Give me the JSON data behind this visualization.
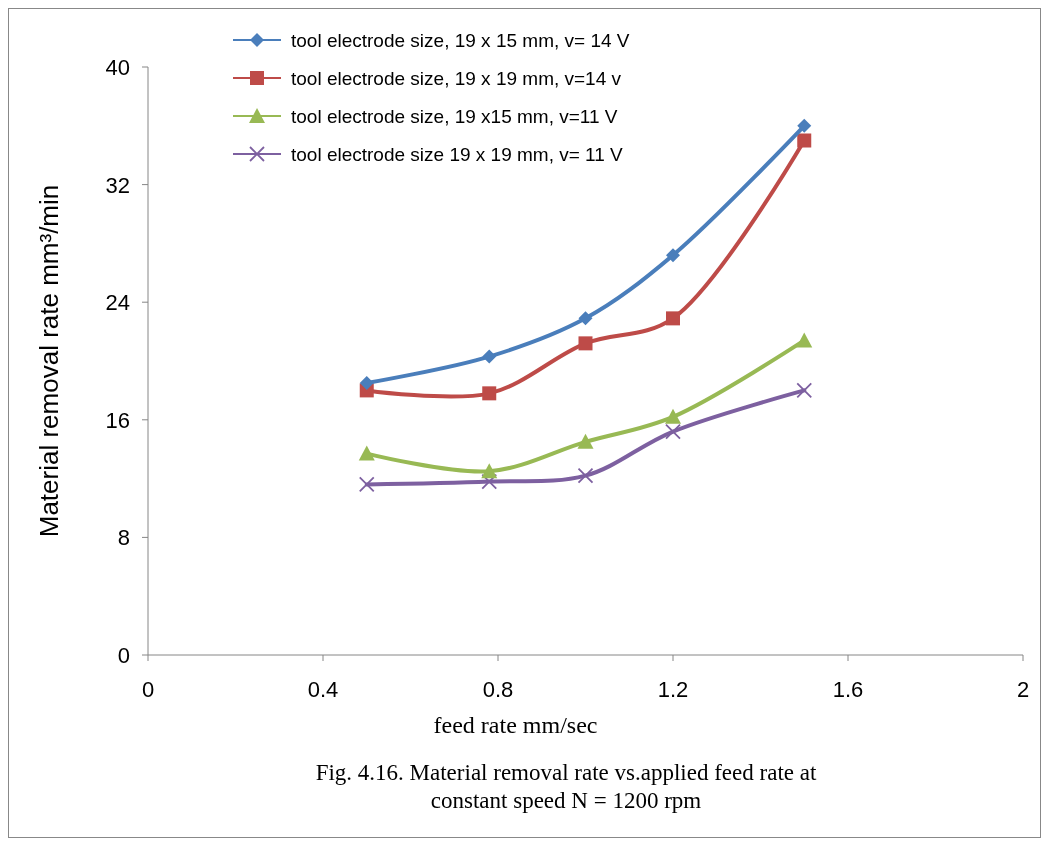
{
  "chart_data": {
    "type": "line",
    "title": "Fig. 4.16. Material removal rate vs.applied feed rate at constant speed N = 1200 rpm",
    "xlabel": "feed rate mm/sec",
    "ylabel": "Material removal rate mm³/min",
    "x": [
      0.5,
      0.78,
      1.0,
      1.2,
      1.5
    ],
    "series": [
      {
        "name": "tool electrode size, 19 x 15 mm,  v= 14 V",
        "color": "#4a7ebb",
        "marker": "diamond",
        "values": [
          18.5,
          20.3,
          22.9,
          27.2,
          36.0
        ]
      },
      {
        "name": "tool electrode size, 19 x 19 mm,  v=14 v",
        "color": "#be4b48",
        "marker": "square",
        "values": [
          18.0,
          17.8,
          21.2,
          22.9,
          35.0
        ]
      },
      {
        "name": "tool electrode size, 19 x15 mm, v=11  V",
        "color": "#98b954",
        "marker": "triangle",
        "values": [
          13.7,
          12.5,
          14.5,
          16.2,
          21.4
        ]
      },
      {
        "name": "tool electrode size 19 x 19 mm, v= 11  V",
        "color": "#7d60a0",
        "marker": "cross",
        "values": [
          11.6,
          11.8,
          12.2,
          15.2,
          18.0
        ]
      }
    ],
    "xlim": [
      0,
      2
    ],
    "xticks": [
      0,
      0.4,
      0.8,
      1.2,
      1.6,
      2
    ],
    "ylim": [
      0,
      40
    ],
    "yticks": [
      0,
      8,
      16,
      24,
      32,
      40
    ],
    "grid": false,
    "legend": "top"
  }
}
